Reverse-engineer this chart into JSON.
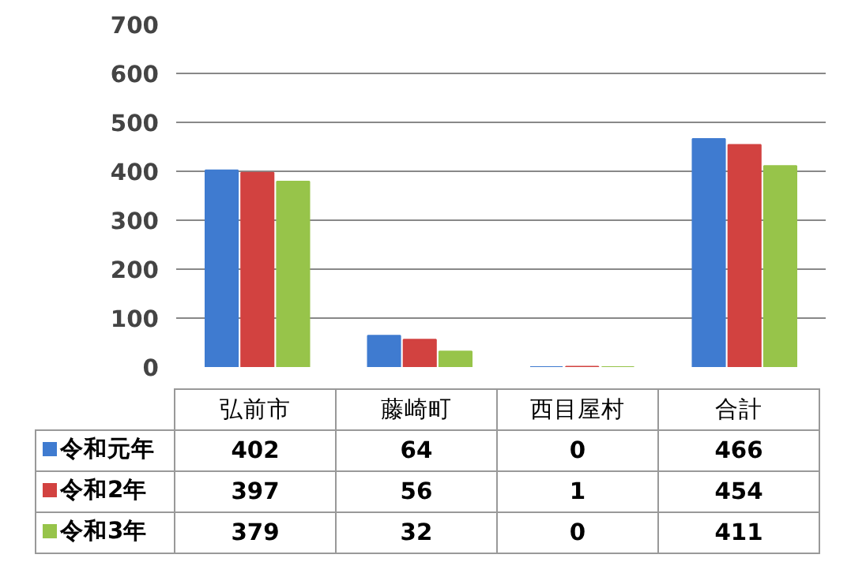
{
  "chart_data": {
    "type": "bar",
    "categories": [
      "弘前市",
      "藤崎町",
      "西目屋村",
      "合計"
    ],
    "series": [
      {
        "name": "令和元年",
        "color": "#3f7bd0",
        "values": [
          402,
          64,
          0,
          466
        ]
      },
      {
        "name": "令和2年",
        "color": "#d24240",
        "values": [
          397,
          56,
          1,
          454
        ]
      },
      {
        "name": "令和3年",
        "color": "#97c44a",
        "values": [
          379,
          32,
          0,
          411
        ]
      }
    ],
    "ylim": [
      0,
      700
    ],
    "yticks": [
      0,
      100,
      200,
      300,
      400,
      500,
      600,
      700
    ],
    "grid": "y",
    "legend": "bottom left",
    "data_labels": true
  }
}
